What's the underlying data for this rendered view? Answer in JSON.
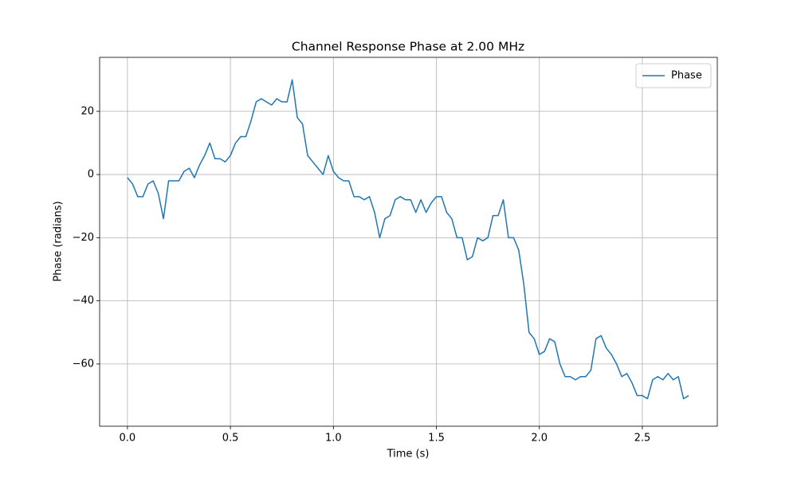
{
  "chart_data": {
    "type": "line",
    "title": "Channel Response Phase at 2.00 MHz",
    "x_label": "Time (s)",
    "y_label": "Phase (radians)",
    "x": [
      0.0,
      0.025,
      0.05,
      0.075,
      0.1,
      0.125,
      0.15,
      0.175,
      0.2,
      0.225,
      0.25,
      0.275,
      0.3,
      0.325,
      0.35,
      0.375,
      0.4,
      0.425,
      0.45,
      0.475,
      0.5,
      0.525,
      0.55,
      0.575,
      0.6,
      0.625,
      0.65,
      0.675,
      0.7,
      0.725,
      0.75,
      0.775,
      0.8,
      0.825,
      0.85,
      0.875,
      0.9,
      0.925,
      0.95,
      0.975,
      1.0,
      1.025,
      1.05,
      1.075,
      1.1,
      1.125,
      1.15,
      1.175,
      1.2,
      1.225,
      1.25,
      1.275,
      1.3,
      1.325,
      1.35,
      1.375,
      1.4,
      1.425,
      1.45,
      1.475,
      1.5,
      1.525,
      1.55,
      1.575,
      1.6,
      1.625,
      1.65,
      1.675,
      1.7,
      1.725,
      1.75,
      1.775,
      1.8,
      1.825,
      1.85,
      1.875,
      1.9,
      1.925,
      1.95,
      1.975,
      2.0,
      2.025,
      2.05,
      2.075,
      2.1,
      2.125,
      2.15,
      2.175,
      2.2,
      2.225,
      2.25,
      2.275,
      2.3,
      2.325,
      2.35,
      2.375,
      2.4,
      2.425,
      2.45,
      2.475,
      2.5,
      2.525,
      2.55,
      2.575,
      2.6,
      2.625,
      2.65,
      2.675,
      2.7,
      2.725
    ],
    "series": [
      {
        "name": "Phase",
        "color": "#1f77b4",
        "values": [
          -1,
          -3,
          -7,
          -7,
          -3,
          -2,
          -6,
          -14,
          -2,
          -2,
          -2,
          1,
          2,
          -1,
          3,
          6,
          10,
          5,
          5,
          4,
          6,
          10,
          12,
          12,
          17,
          23,
          24,
          23,
          22,
          24,
          23,
          23,
          30,
          18,
          16,
          6,
          4,
          2,
          0,
          6,
          1,
          -1,
          -2,
          -2,
          -7,
          -7,
          -8,
          -7,
          -12,
          -20,
          -14,
          -13,
          -8,
          -7,
          -8,
          -8,
          -12,
          -8,
          -12,
          -9,
          -7,
          -7,
          -12,
          -14,
          -20,
          -20,
          -27,
          -26,
          -20,
          -21,
          -20,
          -13,
          -13,
          -8,
          -20,
          -20,
          -24,
          -35,
          -50,
          -52,
          -57,
          -56,
          -52,
          -53,
          -60,
          -64,
          -64,
          -65,
          -64,
          -64,
          -62,
          -52,
          -51,
          -55,
          -57,
          -60,
          -64,
          -63,
          -66,
          -70,
          -70,
          -71,
          -65,
          -64,
          -65,
          -63,
          -65,
          -64,
          -71,
          -70
        ]
      }
    ],
    "xlim": [
      -0.135,
      2.864
    ],
    "ylim": [
      -79.7,
      37.1
    ],
    "xticks": [
      {
        "value": 0,
        "label": "0.0"
      },
      0.5,
      {
        "value": 1,
        "label": "1.0"
      },
      1.5,
      {
        "value": 2,
        "label": "2.0"
      },
      2.5
    ],
    "yticks": [
      {
        "value": -60,
        "label": "−60"
      },
      {
        "value": -40,
        "label": "−40"
      },
      {
        "value": -20,
        "label": "−20"
      },
      0,
      20
    ],
    "grid": true,
    "legend": "upper right"
  }
}
